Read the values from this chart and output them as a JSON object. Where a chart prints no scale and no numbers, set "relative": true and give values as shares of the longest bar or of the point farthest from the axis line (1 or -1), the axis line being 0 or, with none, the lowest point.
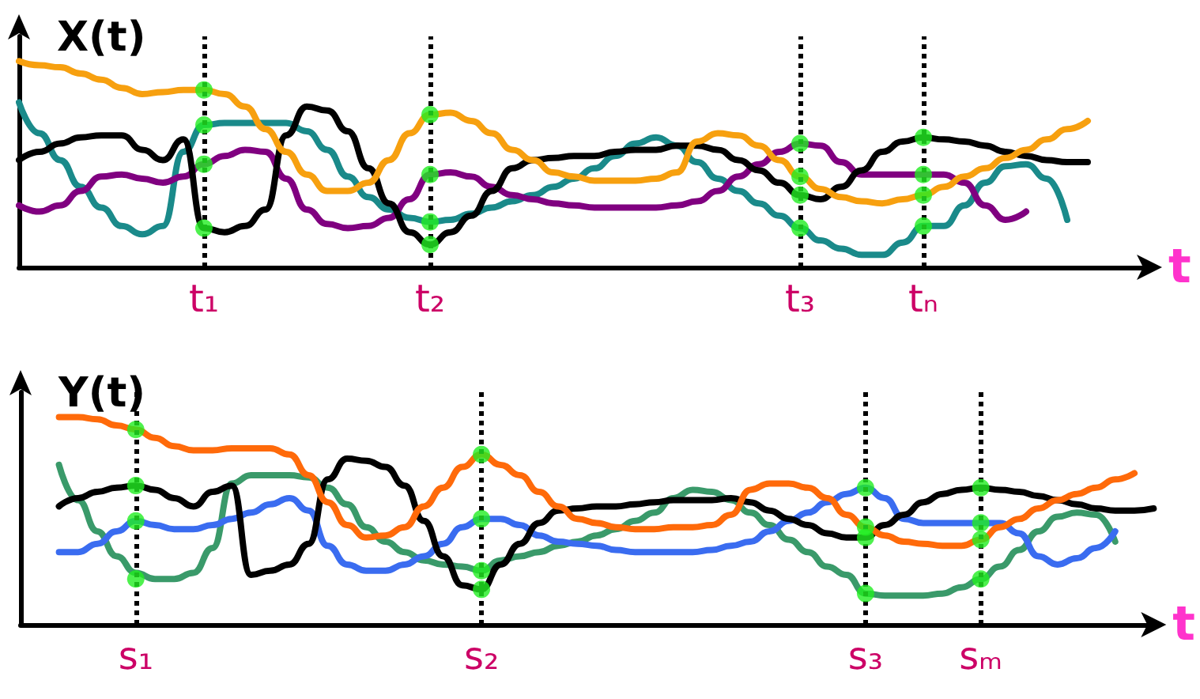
{
  "chart_data": [
    {
      "type": "line",
      "relative": true,
      "ylabel": "X(t)",
      "xlabel": "t",
      "categories": [
        null,
        null,
        null,
        null,
        null,
        null,
        null,
        null,
        null,
        "t₁",
        null,
        null,
        null,
        null,
        null,
        null,
        null,
        null,
        null,
        null,
        "t₂",
        null,
        null,
        null,
        null,
        null,
        null,
        null,
        null,
        null,
        null,
        null,
        null,
        null,
        null,
        null,
        null,
        null,
        "t₃",
        null,
        null,
        null,
        null,
        null,
        "tₙ",
        null,
        null,
        null,
        null,
        null,
        null,
        null,
        null,
        null,
        null,
        null
      ],
      "series": [
        {
          "color": "#1a8a8a",
          "values": [
            0.8,
            0.65,
            0.52,
            0.39,
            0.29,
            0.2,
            0.16,
            0.2,
            0.56,
            0.69,
            0.7,
            0.7,
            0.7,
            0.7,
            0.66,
            0.57,
            0.44,
            0.34,
            0.28,
            0.24,
            0.22,
            0.23,
            0.26,
            0.29,
            0.32,
            0.35,
            0.39,
            0.43,
            0.48,
            0.54,
            0.6,
            0.63,
            0.59,
            0.51,
            0.43,
            0.37,
            0.31,
            0.25,
            0.19,
            0.13,
            0.09,
            0.06,
            0.06,
            0.12,
            0.2,
            0.2,
            0.3,
            0.41,
            0.49,
            0.5,
            0.43,
            0.23,
            null,
            null,
            null,
            null
          ]
        },
        {
          "color": "#800080",
          "values": [
            0.3,
            0.27,
            0.3,
            0.37,
            0.44,
            0.45,
            0.43,
            0.41,
            0.44,
            0.5,
            0.54,
            0.57,
            0.56,
            0.43,
            0.28,
            0.21,
            0.19,
            0.2,
            0.24,
            0.33,
            0.45,
            0.46,
            0.44,
            0.39,
            0.35,
            0.33,
            0.31,
            0.3,
            0.29,
            0.29,
            0.29,
            0.29,
            0.3,
            0.32,
            0.37,
            0.44,
            0.5,
            0.56,
            0.6,
            0.59,
            0.51,
            0.45,
            0.45,
            0.45,
            0.45,
            0.45,
            0.41,
            0.3,
            0.23,
            0.27,
            null,
            null,
            null,
            null,
            null,
            null
          ]
        },
        {
          "color": "#000000",
          "values": [
            0.52,
            0.56,
            0.6,
            0.63,
            0.64,
            0.64,
            0.57,
            0.52,
            0.62,
            0.19,
            0.17,
            0.2,
            0.28,
            0.64,
            0.78,
            0.76,
            0.66,
            0.48,
            0.31,
            0.17,
            0.11,
            0.17,
            0.25,
            0.37,
            0.48,
            0.52,
            0.53,
            0.54,
            0.54,
            0.56,
            0.57,
            0.57,
            0.59,
            0.59,
            0.57,
            0.52,
            0.47,
            0.41,
            0.35,
            0.33,
            0.39,
            0.47,
            0.56,
            0.61,
            0.63,
            0.62,
            0.61,
            0.59,
            0.56,
            0.54,
            0.52,
            0.51,
            0.51,
            null,
            null,
            null
          ]
        },
        {
          "color": "#f7a00f",
          "values": [
            1.0,
            0.98,
            0.97,
            0.94,
            0.91,
            0.87,
            0.84,
            0.85,
            0.86,
            0.86,
            0.84,
            0.78,
            0.67,
            0.56,
            0.45,
            0.37,
            0.37,
            0.41,
            0.52,
            0.65,
            0.74,
            0.75,
            0.71,
            0.65,
            0.57,
            0.52,
            0.46,
            0.44,
            0.42,
            0.42,
            0.42,
            0.43,
            0.46,
            0.61,
            0.65,
            0.64,
            0.59,
            0.52,
            0.44,
            0.38,
            0.34,
            0.32,
            0.31,
            0.33,
            0.35,
            0.39,
            0.44,
            0.48,
            0.53,
            0.57,
            0.62,
            0.67,
            0.71,
            null,
            null,
            null
          ]
        },
        {
          "type": "scatter",
          "color": "#22ee22",
          "x": [
            "t₁",
            "t₁",
            "t₁",
            "t₁",
            "t₂",
            "t₂",
            "t₂",
            "t₂",
            "t₃",
            "t₃",
            "t₃",
            "t₃",
            "tₙ",
            "tₙ",
            "tₙ",
            "tₙ"
          ],
          "values": [
            0.86,
            0.69,
            0.5,
            0.19,
            0.74,
            0.45,
            0.22,
            0.11,
            0.6,
            0.44,
            0.35,
            0.19,
            0.63,
            0.45,
            0.35,
            0.2
          ]
        }
      ],
      "ref_lines": [
        {
          "axis": "x",
          "value": "t₁",
          "line_style": "dotted"
        },
        {
          "axis": "x",
          "value": "t₂",
          "line_style": "dotted"
        },
        {
          "axis": "x",
          "value": "t₃",
          "line_style": "dotted"
        },
        {
          "axis": "x",
          "value": "tₙ",
          "line_style": "dotted"
        }
      ]
    },
    {
      "type": "line",
      "relative": true,
      "ylabel": "Y(t)",
      "xlabel": "t",
      "categories": [
        null,
        null,
        null,
        null,
        null,
        null,
        "s₁",
        null,
        null,
        null,
        null,
        null,
        null,
        null,
        null,
        null,
        null,
        null,
        null,
        null,
        null,
        null,
        null,
        null,
        "s₂",
        null,
        null,
        null,
        null,
        null,
        null,
        null,
        null,
        null,
        null,
        null,
        null,
        null,
        null,
        null,
        null,
        null,
        null,
        null,
        "s₃",
        null,
        null,
        null,
        null,
        null,
        "sₘ",
        null,
        null,
        null,
        null,
        null,
        null,
        null,
        null,
        null
      ],
      "series": [
        {
          "color": "#3a9a6a",
          "values": [
            null,
            null,
            0.77,
            0.6,
            0.45,
            0.33,
            0.25,
            0.22,
            0.22,
            0.25,
            0.37,
            0.68,
            0.72,
            0.72,
            0.72,
            0.71,
            0.66,
            0.58,
            0.47,
            0.4,
            0.35,
            0.31,
            0.29,
            0.28,
            0.26,
            0.31,
            0.33,
            0.35,
            0.38,
            0.4,
            0.43,
            0.46,
            0.5,
            0.54,
            0.61,
            0.65,
            0.64,
            0.6,
            0.54,
            0.48,
            0.41,
            0.35,
            0.28,
            0.24,
            0.15,
            0.14,
            0.14,
            0.14,
            0.15,
            0.18,
            0.22,
            0.28,
            0.36,
            0.45,
            0.52,
            0.54,
            0.53,
            0.4,
            null,
            null
          ]
        },
        {
          "color": "#3a6cf0",
          "values": [
            null,
            null,
            0.35,
            0.35,
            0.39,
            0.45,
            0.5,
            0.48,
            0.46,
            0.46,
            0.48,
            0.51,
            0.54,
            0.58,
            0.61,
            0.55,
            0.38,
            0.29,
            0.26,
            0.26,
            0.29,
            0.33,
            0.39,
            0.47,
            0.51,
            0.51,
            0.48,
            0.43,
            0.4,
            0.39,
            0.38,
            0.36,
            0.35,
            0.35,
            0.35,
            0.35,
            0.36,
            0.38,
            0.4,
            0.45,
            0.5,
            0.54,
            0.59,
            0.63,
            0.66,
            0.61,
            0.51,
            0.49,
            0.49,
            0.49,
            0.49,
            0.49,
            0.44,
            0.33,
            0.29,
            0.32,
            0.37,
            0.45,
            null,
            null
          ]
        },
        {
          "color": "#000000",
          "values": [
            null,
            null,
            0.57,
            0.61,
            0.64,
            0.66,
            0.67,
            0.65,
            0.61,
            0.57,
            0.64,
            0.67,
            0.24,
            0.26,
            0.29,
            0.39,
            0.7,
            0.8,
            0.79,
            0.76,
            0.67,
            0.5,
            0.33,
            0.19,
            0.17,
            0.29,
            0.39,
            0.49,
            0.55,
            0.56,
            0.57,
            0.57,
            0.58,
            0.59,
            0.6,
            0.6,
            0.6,
            0.61,
            0.59,
            0.55,
            0.51,
            0.48,
            0.44,
            0.42,
            0.42,
            0.48,
            0.53,
            0.59,
            0.63,
            0.65,
            0.66,
            0.65,
            0.64,
            0.62,
            0.6,
            0.58,
            0.56,
            0.55,
            0.55,
            0.56
          ]
        },
        {
          "color": "#ff6a0a",
          "values": [
            null,
            null,
            1.0,
            1.0,
            0.99,
            0.96,
            0.94,
            0.9,
            0.86,
            0.84,
            0.84,
            0.85,
            0.85,
            0.85,
            0.82,
            0.72,
            0.59,
            0.48,
            0.42,
            0.43,
            0.47,
            0.57,
            0.66,
            0.76,
            0.82,
            0.77,
            0.72,
            0.64,
            0.57,
            0.51,
            0.49,
            0.47,
            0.46,
            0.46,
            0.47,
            0.47,
            0.48,
            0.53,
            0.65,
            0.68,
            0.68,
            0.66,
            0.61,
            0.53,
            0.47,
            0.43,
            0.4,
            0.39,
            0.38,
            0.38,
            0.41,
            0.47,
            0.51,
            0.56,
            0.6,
            0.63,
            0.66,
            0.7,
            0.73,
            null
          ]
        },
        {
          "type": "scatter",
          "color": "#22ee22",
          "x": [
            "s₁",
            "s₁",
            "s₁",
            "s₁",
            "s₂",
            "s₂",
            "s₂",
            "s₂",
            "s₃",
            "s₃",
            "s₃",
            "s₃",
            "sₘ",
            "sₘ",
            "sₘ",
            "sₘ"
          ],
          "values": [
            0.94,
            0.67,
            0.5,
            0.22,
            0.82,
            0.51,
            0.26,
            0.17,
            0.66,
            0.47,
            0.42,
            0.15,
            0.66,
            0.49,
            0.41,
            0.22
          ]
        }
      ],
      "ref_lines": [
        {
          "axis": "x",
          "value": "s₁",
          "line_style": "dotted"
        },
        {
          "axis": "x",
          "value": "s₂",
          "line_style": "dotted"
        },
        {
          "axis": "x",
          "value": "s₃",
          "line_style": "dotted"
        },
        {
          "axis": "x",
          "value": "sₘ",
          "line_style": "dotted"
        }
      ]
    }
  ]
}
